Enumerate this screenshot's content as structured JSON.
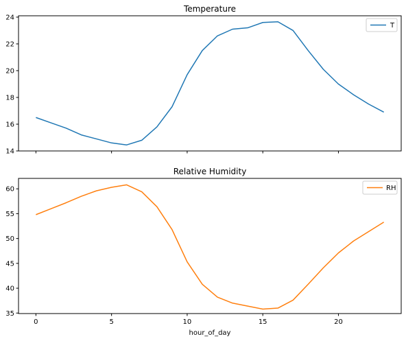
{
  "colors": {
    "temperature": "#1f77b4",
    "humidity": "#ff7f0e",
    "axis": "#000000",
    "background": "#ffffff",
    "legend_border": "#cccccc"
  },
  "chart_data": [
    {
      "type": "line",
      "title": "Temperature",
      "xlabel": "",
      "ylabel": "",
      "x": [
        0,
        1,
        2,
        3,
        4,
        5,
        6,
        7,
        8,
        9,
        10,
        11,
        12,
        13,
        14,
        15,
        16,
        17,
        18,
        19,
        20,
        21,
        22,
        23
      ],
      "series": [
        {
          "name": "T",
          "values": [
            16.5,
            16.1,
            15.7,
            15.2,
            14.9,
            14.6,
            14.45,
            14.8,
            15.8,
            17.3,
            19.7,
            21.5,
            22.6,
            23.1,
            23.2,
            23.6,
            23.65,
            23.0,
            21.5,
            20.1,
            19.0,
            18.2,
            17.5,
            16.9
          ]
        }
      ],
      "xlim": [
        -1.15,
        24.15
      ],
      "ylim": [
        14.0,
        24.1
      ],
      "yticks": [
        14,
        16,
        18,
        20,
        22,
        24
      ],
      "xticks": [
        0,
        5,
        10,
        15,
        20
      ],
      "show_xtick_labels": false,
      "grid": false,
      "legend_position": "top-right"
    },
    {
      "type": "line",
      "title": "Relative Humidity",
      "xlabel": "hour_of_day",
      "ylabel": "",
      "x": [
        0,
        1,
        2,
        3,
        4,
        5,
        6,
        7,
        8,
        9,
        10,
        11,
        12,
        13,
        14,
        15,
        16,
        17,
        18,
        19,
        20,
        21,
        22,
        23
      ],
      "series": [
        {
          "name": "RH",
          "values": [
            54.8,
            56.0,
            57.2,
            58.5,
            59.6,
            60.3,
            60.8,
            59.4,
            56.4,
            51.8,
            45.3,
            40.8,
            38.2,
            37.0,
            36.4,
            35.8,
            36.0,
            37.6,
            40.8,
            44.1,
            47.1,
            49.5,
            51.4,
            53.3
          ]
        }
      ],
      "xlim": [
        -1.15,
        24.15
      ],
      "ylim": [
        34.9,
        62.1
      ],
      "yticks": [
        35,
        40,
        45,
        50,
        55,
        60
      ],
      "xticks": [
        0,
        5,
        10,
        15,
        20
      ],
      "show_xtick_labels": true,
      "grid": false,
      "legend_position": "top-right"
    }
  ]
}
